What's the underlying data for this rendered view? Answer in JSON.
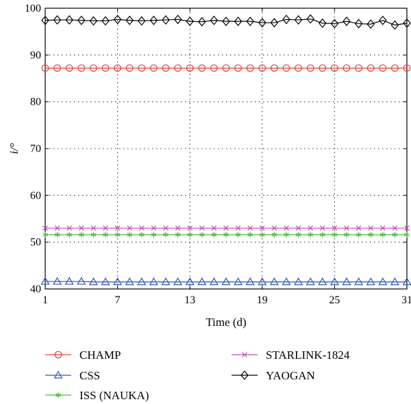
{
  "chart_data": {
    "type": "line",
    "title": "",
    "xlabel": "Time (d)",
    "ylabel": "i/°",
    "xlim": [
      1,
      31
    ],
    "ylim": [
      40,
      100
    ],
    "xticks": [
      1,
      7,
      13,
      19,
      25,
      31
    ],
    "yticks": [
      40,
      50,
      60,
      70,
      80,
      90,
      100
    ],
    "grid": true,
    "legend_position": "bottom",
    "x": [
      1,
      2,
      3,
      4,
      5,
      6,
      7,
      8,
      9,
      10,
      11,
      12,
      13,
      14,
      15,
      16,
      17,
      18,
      19,
      20,
      21,
      22,
      23,
      24,
      25,
      26,
      27,
      28,
      29,
      30,
      31
    ],
    "series": [
      {
        "name": "CHAMP",
        "color": "#e8403a",
        "marker": "circle",
        "values": [
          87.2,
          87.2,
          87.2,
          87.2,
          87.2,
          87.2,
          87.2,
          87.2,
          87.2,
          87.2,
          87.2,
          87.2,
          87.2,
          87.2,
          87.2,
          87.2,
          87.2,
          87.2,
          87.2,
          87.2,
          87.2,
          87.2,
          87.2,
          87.2,
          87.2,
          87.2,
          87.2,
          87.2,
          87.2,
          87.2,
          87.2
        ]
      },
      {
        "name": "CSS",
        "color": "#2f55b0",
        "marker": "triangle",
        "values": [
          41.6,
          41.6,
          41.6,
          41.6,
          41.5,
          41.5,
          41.5,
          41.5,
          41.5,
          41.5,
          41.5,
          41.5,
          41.5,
          41.5,
          41.5,
          41.5,
          41.5,
          41.5,
          41.5,
          41.5,
          41.5,
          41.5,
          41.5,
          41.5,
          41.5,
          41.5,
          41.5,
          41.5,
          41.5,
          41.5,
          41.5
        ]
      },
      {
        "name": "ISS (NAUKA)",
        "color": "#4dbb3a",
        "marker": "asterisk",
        "values": [
          51.6,
          51.6,
          51.6,
          51.6,
          51.6,
          51.6,
          51.6,
          51.6,
          51.6,
          51.6,
          51.6,
          51.6,
          51.6,
          51.6,
          51.6,
          51.6,
          51.6,
          51.6,
          51.6,
          51.6,
          51.6,
          51.6,
          51.6,
          51.6,
          51.6,
          51.6,
          51.6,
          51.6,
          51.6,
          51.6,
          51.6
        ]
      },
      {
        "name": "STARLINK-1824",
        "color": "#c04fb0",
        "marker": "x",
        "values": [
          53.0,
          53.0,
          53.0,
          53.0,
          53.0,
          53.0,
          53.0,
          53.0,
          53.0,
          53.0,
          53.0,
          53.0,
          53.0,
          53.0,
          53.0,
          53.0,
          53.0,
          53.0,
          53.0,
          53.0,
          53.0,
          53.0,
          53.0,
          53.0,
          53.0,
          53.0,
          53.0,
          53.0,
          53.0,
          53.0,
          53.0
        ]
      },
      {
        "name": "YAOGAN",
        "color": "#000000",
        "marker": "diamond",
        "values": [
          97.4,
          97.5,
          97.5,
          97.4,
          97.3,
          97.3,
          97.6,
          97.4,
          97.3,
          97.4,
          97.5,
          97.6,
          97.2,
          97.1,
          97.4,
          97.2,
          97.2,
          97.2,
          96.9,
          96.9,
          97.6,
          97.5,
          97.7,
          96.8,
          96.7,
          97.2,
          96.7,
          96.6,
          97.4,
          96.4,
          96.8
        ]
      }
    ]
  }
}
